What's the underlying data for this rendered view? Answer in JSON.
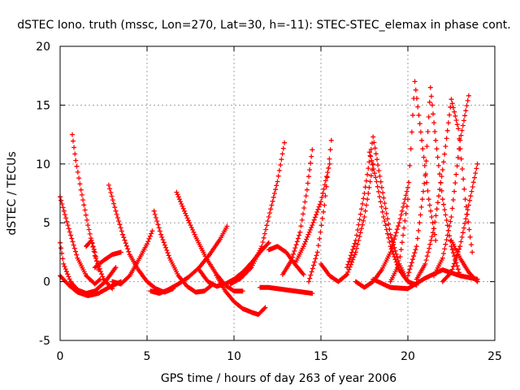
{
  "chart_data": {
    "type": "scatter",
    "title": "dSTEC Iono. truth (mssc, Lon=270, Lat=30, h=-11): STEC-STEC_elemax in phase cont.",
    "xlabel": "GPS time / hours of day 263 of year 2006",
    "ylabel": "dSTEC  / TECUs",
    "xlim": [
      0,
      25
    ],
    "ylim": [
      -5,
      20
    ],
    "x_ticks": [
      0,
      5,
      10,
      15,
      20,
      25
    ],
    "y_ticks": [
      -5,
      0,
      5,
      10,
      15,
      20
    ],
    "grid": true,
    "marker": "+",
    "series_color": "#ff0000",
    "series": [
      {
        "x": [
          0.0,
          0.5,
          1.0,
          1.5,
          2.0,
          2.3
        ],
        "y": [
          7.2,
          4.5,
          2.0,
          0.5,
          -0.2,
          0.2
        ]
      },
      {
        "x": [
          0.0,
          0.2,
          0.6,
          1.0,
          1.5,
          2.0,
          2.6,
          3.2
        ],
        "y": [
          3.3,
          1.5,
          0.0,
          -0.7,
          -1.0,
          -0.8,
          0.0,
          1.2
        ]
      },
      {
        "x": [
          0.0,
          0.5,
          1.0,
          1.6,
          2.2,
          2.8,
          3.5
        ],
        "y": [
          0.5,
          -0.3,
          -0.9,
          -1.2,
          -1.0,
          -0.5,
          0.0
        ]
      },
      {
        "x": [
          0.7,
          0.9,
          1.2,
          1.6,
          2.0,
          2.5,
          3.0
        ],
        "y": [
          12.5,
          10.3,
          7.8,
          4.8,
          2.2,
          0.2,
          -0.6
        ]
      },
      {
        "x": [
          1.5,
          1.8,
          2.0,
          2.2
        ],
        "y": [
          3.0,
          3.5,
          2.5,
          1.0
        ]
      },
      {
        "x": [
          2.0,
          2.5,
          3.0,
          3.5
        ],
        "y": [
          1.2,
          1.8,
          2.3,
          2.5
        ]
      },
      {
        "x": [
          2.8,
          3.2,
          3.6,
          4.0,
          4.5,
          5.0,
          5.5,
          6.0,
          6.5
        ],
        "y": [
          8.2,
          6.0,
          4.0,
          2.3,
          1.0,
          0.0,
          -0.6,
          -0.9,
          -0.6
        ]
      },
      {
        "x": [
          3.0,
          3.5,
          4.0,
          4.5,
          5.0,
          5.3
        ],
        "y": [
          0.0,
          -0.2,
          0.5,
          1.8,
          3.2,
          4.3
        ]
      },
      {
        "x": [
          5.4,
          5.8,
          6.3,
          6.8,
          7.3,
          7.8,
          8.3,
          8.8
        ],
        "y": [
          6.0,
          4.0,
          2.0,
          0.5,
          -0.4,
          -0.9,
          -0.8,
          -0.2
        ]
      },
      {
        "x": [
          5.2,
          5.7,
          6.2,
          6.8,
          7.4,
          8.0,
          8.6,
          9.2,
          9.6
        ],
        "y": [
          -0.8,
          -1.0,
          -0.7,
          -0.2,
          0.4,
          1.2,
          2.3,
          3.6,
          4.7
        ]
      },
      {
        "x": [
          6.7,
          7.2,
          7.8,
          8.4,
          9.0,
          9.5,
          10.0,
          10.5
        ],
        "y": [
          7.6,
          5.8,
          3.8,
          2.0,
          0.6,
          -0.3,
          -0.8,
          -0.8
        ]
      },
      {
        "x": [
          8.0,
          8.5,
          9.0,
          9.5,
          10.0,
          10.5,
          11.0,
          11.5,
          12.0
        ],
        "y": [
          1.0,
          0.0,
          -0.4,
          -0.2,
          0.2,
          0.8,
          1.6,
          2.5,
          3.3
        ]
      },
      {
        "x": [
          9.0,
          9.5,
          10.0,
          10.5,
          11.0,
          11.4,
          11.8
        ],
        "y": [
          0.5,
          -0.8,
          -1.7,
          -2.3,
          -2.6,
          -2.8,
          -2.2
        ]
      },
      {
        "x": [
          9.8,
          10.4,
          11.0,
          11.6,
          12.0,
          12.5,
          12.9
        ],
        "y": [
          -0.2,
          0.3,
          1.2,
          3.0,
          5.5,
          8.5,
          11.8
        ]
      },
      {
        "x": [
          11.5,
          12.0,
          12.5,
          13.0,
          13.5,
          14.0,
          14.5
        ],
        "y": [
          -0.5,
          -0.5,
          -0.6,
          -0.7,
          -0.8,
          -0.9,
          -1.0
        ]
      },
      {
        "x": [
          12.0,
          12.5,
          13.0,
          13.5,
          14.0
        ],
        "y": [
          2.7,
          3.0,
          2.5,
          1.5,
          0.6
        ]
      },
      {
        "x": [
          12.8,
          13.3,
          13.8,
          14.2,
          14.5
        ],
        "y": [
          0.6,
          1.8,
          4.2,
          7.8,
          11.2
        ]
      },
      {
        "x": [
          13.5,
          14.0,
          14.5,
          15.0,
          15.5
        ],
        "y": [
          1.5,
          3.0,
          4.8,
          6.8,
          10.0
        ]
      },
      {
        "x": [
          14.3,
          14.8,
          15.2,
          15.6
        ],
        "y": [
          0.0,
          2.5,
          6.5,
          12.0
        ]
      },
      {
        "x": [
          15.0,
          15.5,
          16.0,
          16.5,
          17.0,
          17.5,
          18.0
        ],
        "y": [
          1.5,
          0.5,
          0.0,
          0.6,
          2.5,
          5.5,
          10.0
        ]
      },
      {
        "x": [
          16.5,
          17.0,
          17.5,
          18.0,
          18.5,
          19.0,
          19.5,
          20.0
        ],
        "y": [
          1.2,
          3.5,
          7.5,
          12.3,
          8.0,
          4.0,
          1.5,
          0.0
        ]
      },
      {
        "x": [
          17.0,
          17.5,
          18.0,
          18.5,
          19.0,
          19.5,
          20.0
        ],
        "y": [
          0.0,
          -0.5,
          0.0,
          1.0,
          2.5,
          5.0,
          8.0
        ]
      },
      {
        "x": [
          17.8,
          18.2,
          18.6,
          19.0,
          19.5,
          20.0,
          20.5
        ],
        "y": [
          11.0,
          8.5,
          5.5,
          3.0,
          1.0,
          0.0,
          -0.3
        ]
      },
      {
        "x": [
          19.0,
          19.5,
          20.0,
          20.4,
          20.8,
          21.2,
          21.6
        ],
        "y": [
          0.0,
          1.5,
          7.0,
          17.0,
          12.0,
          7.0,
          3.5
        ]
      },
      {
        "x": [
          20.0,
          20.5,
          21.0,
          21.3,
          21.6,
          22.0,
          22.5,
          23.0
        ],
        "y": [
          0.5,
          3.0,
          9.0,
          16.5,
          12.0,
          7.0,
          3.0,
          0.5
        ]
      },
      {
        "x": [
          20.5,
          21.0,
          21.5,
          22.0,
          22.5,
          22.9,
          23.3,
          23.7
        ],
        "y": [
          0.2,
          1.5,
          4.5,
          9.5,
          15.5,
          13.0,
          7.0,
          2.5
        ]
      },
      {
        "x": [
          21.5,
          22.0,
          22.5,
          23.0,
          23.5
        ],
        "y": [
          0.5,
          2.0,
          5.5,
          12.0,
          15.8
        ]
      },
      {
        "x": [
          22.0,
          22.5,
          23.0,
          23.5,
          24.0
        ],
        "y": [
          0.0,
          0.8,
          3.0,
          6.5,
          10.0
        ]
      },
      {
        "x": [
          22.5,
          23.0,
          23.5,
          24.0
        ],
        "y": [
          3.5,
          2.0,
          0.8,
          0.0
        ]
      },
      {
        "x": [
          18.0,
          19.0,
          20.0,
          21.0,
          22.0,
          23.0,
          24.0
        ],
        "y": [
          0.2,
          -0.5,
          -0.6,
          0.3,
          1.0,
          0.5,
          0.2
        ]
      }
    ]
  }
}
